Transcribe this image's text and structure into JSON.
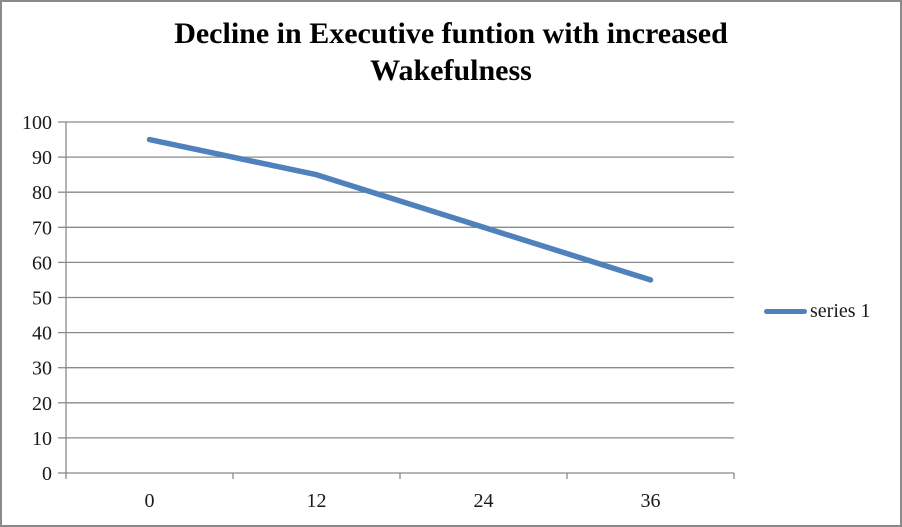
{
  "chart_data": {
    "type": "line",
    "title": "Decline in Executive funtion with increased Wakefulness",
    "categories": [
      "0",
      "12",
      "24",
      "36"
    ],
    "series": [
      {
        "name": "series 1",
        "values": [
          95,
          85,
          70,
          55
        ],
        "color": "#4F81BD"
      }
    ],
    "xlabel": "",
    "ylabel": "",
    "ylim": [
      0,
      100
    ],
    "y_tick_step": 10,
    "grid": true,
    "legend_position": "right",
    "colors": {
      "series_line": "#4F81BD",
      "gridline": "#8a8a8a",
      "axis_line": "#8a8a8a",
      "axis_text": "#1a1a1a",
      "border": "#8a8a8a",
      "background": "#ffffff"
    }
  }
}
